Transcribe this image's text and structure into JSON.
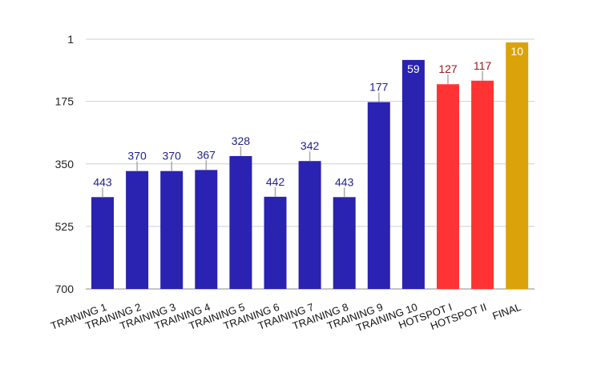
{
  "colors": {
    "training": "#2a22b0",
    "hotspot": "#ff3333",
    "final": "#dca20a",
    "label_dark": "#1f1f8a",
    "label_red": "#a01818",
    "label_white": "#ffffff"
  },
  "chart_data": {
    "type": "bar",
    "title": "",
    "xlabel": "",
    "ylabel": "",
    "y_axis_reversed": true,
    "ylim": [
      1,
      700
    ],
    "yticks": [
      1,
      175,
      350,
      525,
      700
    ],
    "grid": true,
    "categories": [
      "TRAINING 1",
      "TRAINING 2",
      "TRAINING 3",
      "TRAINING 4",
      "TRAINING 5",
      "TRAINING 6",
      "TRAINING 7",
      "TRAINING 8",
      "TRAINING 9",
      "TRAINING 10",
      "HOTSPOT I",
      "HOTSPOT II",
      "FINAL"
    ],
    "values": [
      443,
      370,
      370,
      367,
      328,
      442,
      342,
      443,
      177,
      59,
      127,
      117,
      10
    ],
    "bar_colors": [
      "training",
      "training",
      "training",
      "training",
      "training",
      "training",
      "training",
      "training",
      "training",
      "training",
      "hotspot",
      "hotspot",
      "final"
    ],
    "label_colors": [
      "label_dark",
      "label_dark",
      "label_dark",
      "label_dark",
      "label_dark",
      "label_dark",
      "label_dark",
      "label_dark",
      "label_dark",
      "label_white",
      "label_red",
      "label_red",
      "label_white"
    ],
    "label_inside": [
      false,
      false,
      false,
      false,
      false,
      false,
      false,
      false,
      false,
      true,
      false,
      false,
      true
    ]
  }
}
